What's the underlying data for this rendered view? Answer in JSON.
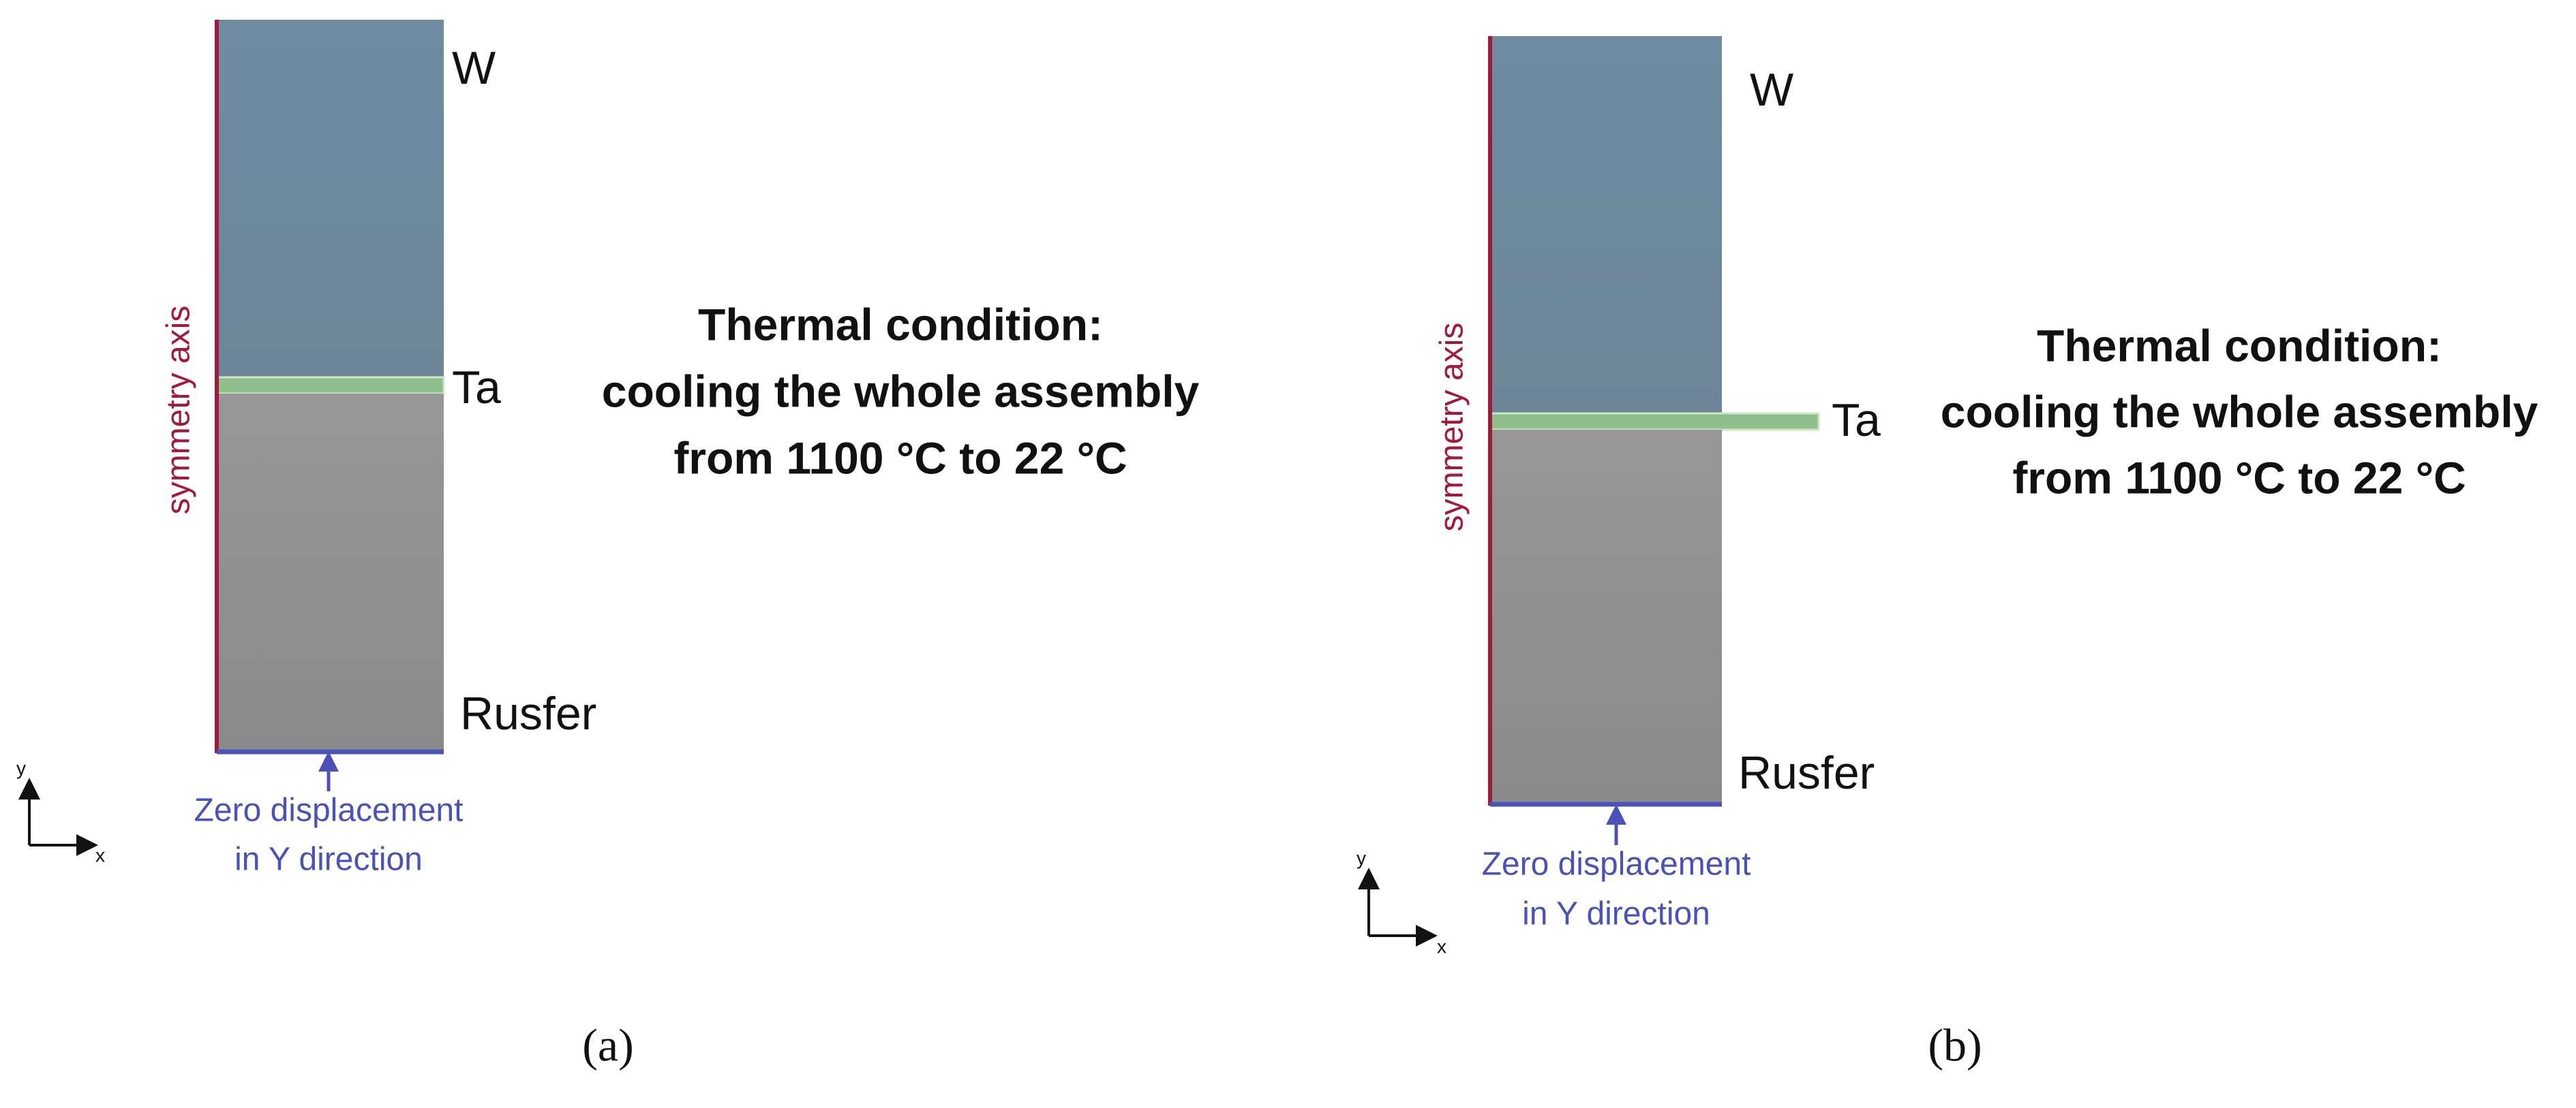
{
  "panels": [
    {
      "caption": "(a)",
      "materials": {
        "top": "W",
        "middle": "Ta",
        "bottom": "Rusfer"
      },
      "axis_label": "symmetry axis",
      "boundary": [
        "Zero displacement",
        "in Y direction"
      ],
      "axes": {
        "y": "y",
        "x": "x"
      },
      "condition": [
        "Thermal condition:",
        "cooling the whole assembly",
        "from 1100 °C to 22 °C"
      ]
    },
    {
      "caption": "(b)",
      "materials": {
        "top": "W",
        "middle": "Ta",
        "bottom": "Rusfer"
      },
      "axis_label": "symmetry axis",
      "boundary": [
        "Zero displacement",
        "in Y direction"
      ],
      "axes": {
        "y": "y",
        "x": "x"
      },
      "condition": [
        "Thermal condition:",
        "cooling the whole assembly",
        "from 1100 °C to 22 °C"
      ]
    }
  ]
}
